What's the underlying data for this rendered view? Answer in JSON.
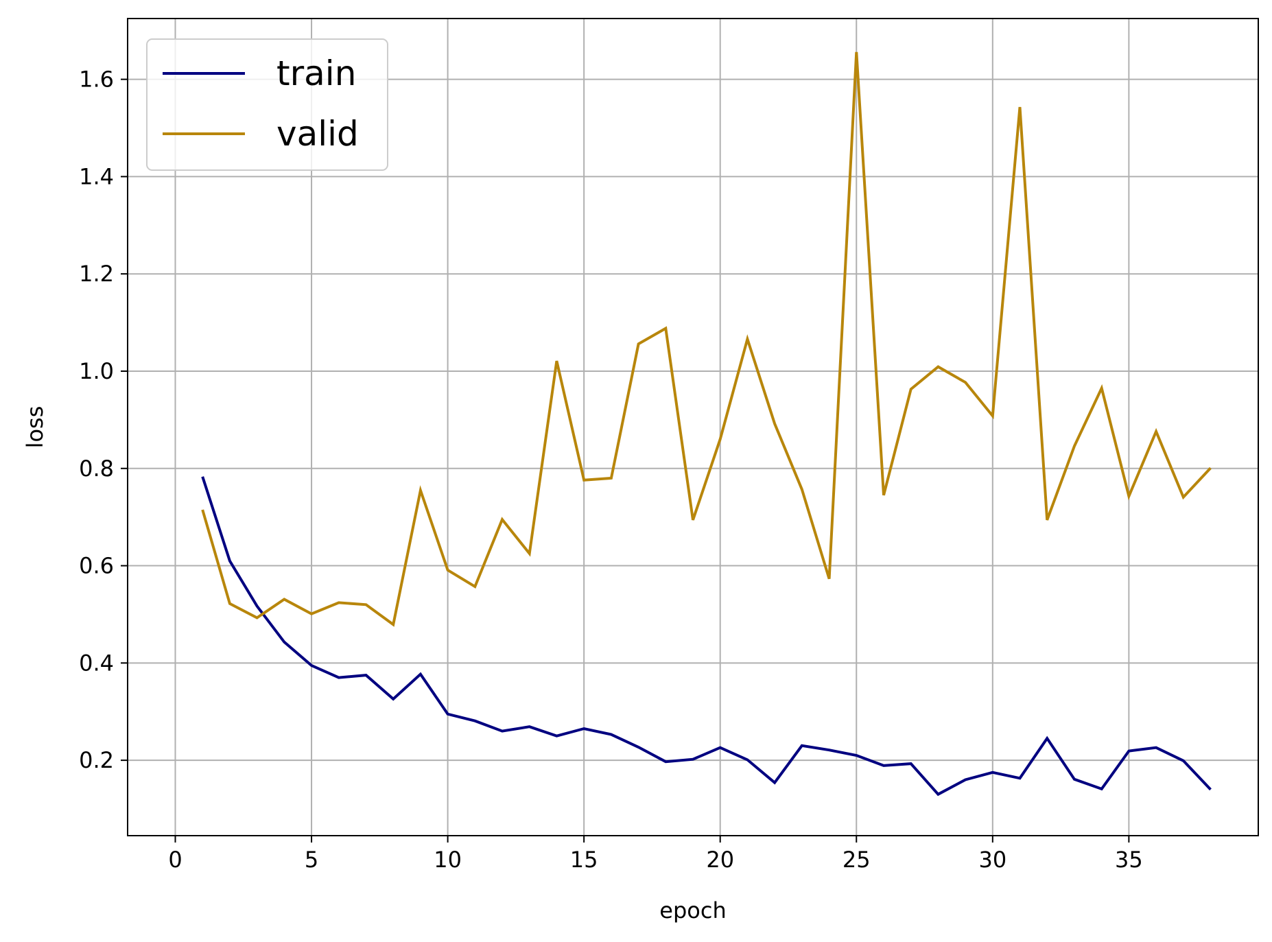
{
  "chart_data": {
    "type": "line",
    "xlabel": "epoch",
    "ylabel": "loss",
    "xlim": [
      -1.75,
      39.75
    ],
    "ylim": [
      0.045,
      1.725
    ],
    "xticks": [
      0,
      5,
      10,
      15,
      20,
      25,
      30,
      35
    ],
    "yticks": [
      0.2,
      0.4,
      0.6,
      0.8,
      1.0,
      1.2,
      1.4,
      1.6
    ],
    "xtick_labels": [
      "0",
      "5",
      "10",
      "15",
      "20",
      "25",
      "30",
      "35"
    ],
    "ytick_labels": [
      "0.2",
      "0.4",
      "0.6",
      "0.8",
      "1.0",
      "1.2",
      "1.4",
      "1.6"
    ],
    "grid": true,
    "legend_position": "top-left",
    "x": [
      1,
      2,
      3,
      4,
      5,
      6,
      7,
      8,
      9,
      10,
      11,
      12,
      13,
      14,
      15,
      16,
      17,
      18,
      19,
      20,
      21,
      22,
      23,
      24,
      25,
      26,
      27,
      28,
      29,
      30,
      31,
      32,
      33,
      34,
      35,
      36,
      37,
      38
    ],
    "series": [
      {
        "name": "train",
        "color": "#000080",
        "values": [
          0.783,
          0.61,
          0.517,
          0.443,
          0.395,
          0.37,
          0.375,
          0.326,
          0.377,
          0.295,
          0.281,
          0.26,
          0.269,
          0.25,
          0.265,
          0.253,
          0.227,
          0.197,
          0.202,
          0.226,
          0.201,
          0.154,
          0.23,
          0.221,
          0.21,
          0.189,
          0.193,
          0.13,
          0.16,
          0.175,
          0.163,
          0.245,
          0.161,
          0.141,
          0.219,
          0.226,
          0.199,
          0.14
        ]
      },
      {
        "name": "valid",
        "color": "#b8860b",
        "values": [
          0.715,
          0.522,
          0.493,
          0.531,
          0.501,
          0.524,
          0.52,
          0.479,
          0.755,
          0.591,
          0.557,
          0.695,
          0.625,
          1.021,
          0.776,
          0.78,
          1.056,
          1.088,
          0.694,
          0.86,
          1.066,
          0.892,
          0.757,
          0.573,
          1.656,
          0.745,
          0.963,
          1.009,
          0.977,
          0.908,
          1.543,
          0.694,
          0.846,
          0.965,
          0.743,
          0.876,
          0.741,
          0.801
        ]
      }
    ]
  }
}
